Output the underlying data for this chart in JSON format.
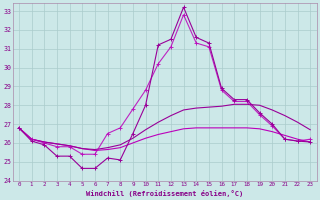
{
  "xlabel": "Windchill (Refroidissement éolien,°C)",
  "bg_color": "#cce8e8",
  "grid_color": "#aacccc",
  "line_color1": "#990099",
  "line_color2": "#bb00bb",
  "xlim": [
    -0.5,
    23.5
  ],
  "ylim": [
    24,
    33.4
  ],
  "yticks": [
    24,
    25,
    26,
    27,
    28,
    29,
    30,
    31,
    32,
    33
  ],
  "xticks": [
    0,
    1,
    2,
    3,
    4,
    5,
    6,
    7,
    8,
    9,
    10,
    11,
    12,
    13,
    14,
    15,
    16,
    17,
    18,
    19,
    20,
    21,
    22,
    23
  ],
  "line1": [
    26.8,
    26.1,
    25.9,
    25.3,
    25.3,
    24.65,
    24.65,
    25.2,
    25.1,
    26.5,
    28.0,
    31.2,
    31.5,
    33.2,
    31.6,
    31.3,
    28.9,
    28.3,
    28.3,
    27.6,
    27.0,
    26.2,
    26.1,
    26.05
  ],
  "line2": [
    26.8,
    26.2,
    26.0,
    25.8,
    25.8,
    25.4,
    25.4,
    26.5,
    26.8,
    27.8,
    28.8,
    30.2,
    31.1,
    32.8,
    31.3,
    31.1,
    28.8,
    28.2,
    28.2,
    27.5,
    26.9,
    26.2,
    26.1,
    26.2
  ],
  "line3": [
    26.8,
    26.2,
    26.05,
    25.95,
    25.85,
    25.7,
    25.65,
    25.75,
    25.9,
    26.25,
    26.7,
    27.1,
    27.45,
    27.75,
    27.85,
    27.9,
    27.95,
    28.05,
    28.05,
    28.0,
    27.75,
    27.45,
    27.1,
    26.7
  ],
  "line4": [
    26.8,
    26.2,
    26.05,
    25.95,
    25.85,
    25.7,
    25.6,
    25.65,
    25.75,
    26.0,
    26.25,
    26.45,
    26.6,
    26.75,
    26.8,
    26.8,
    26.8,
    26.8,
    26.8,
    26.75,
    26.6,
    26.4,
    26.2,
    26.05
  ]
}
